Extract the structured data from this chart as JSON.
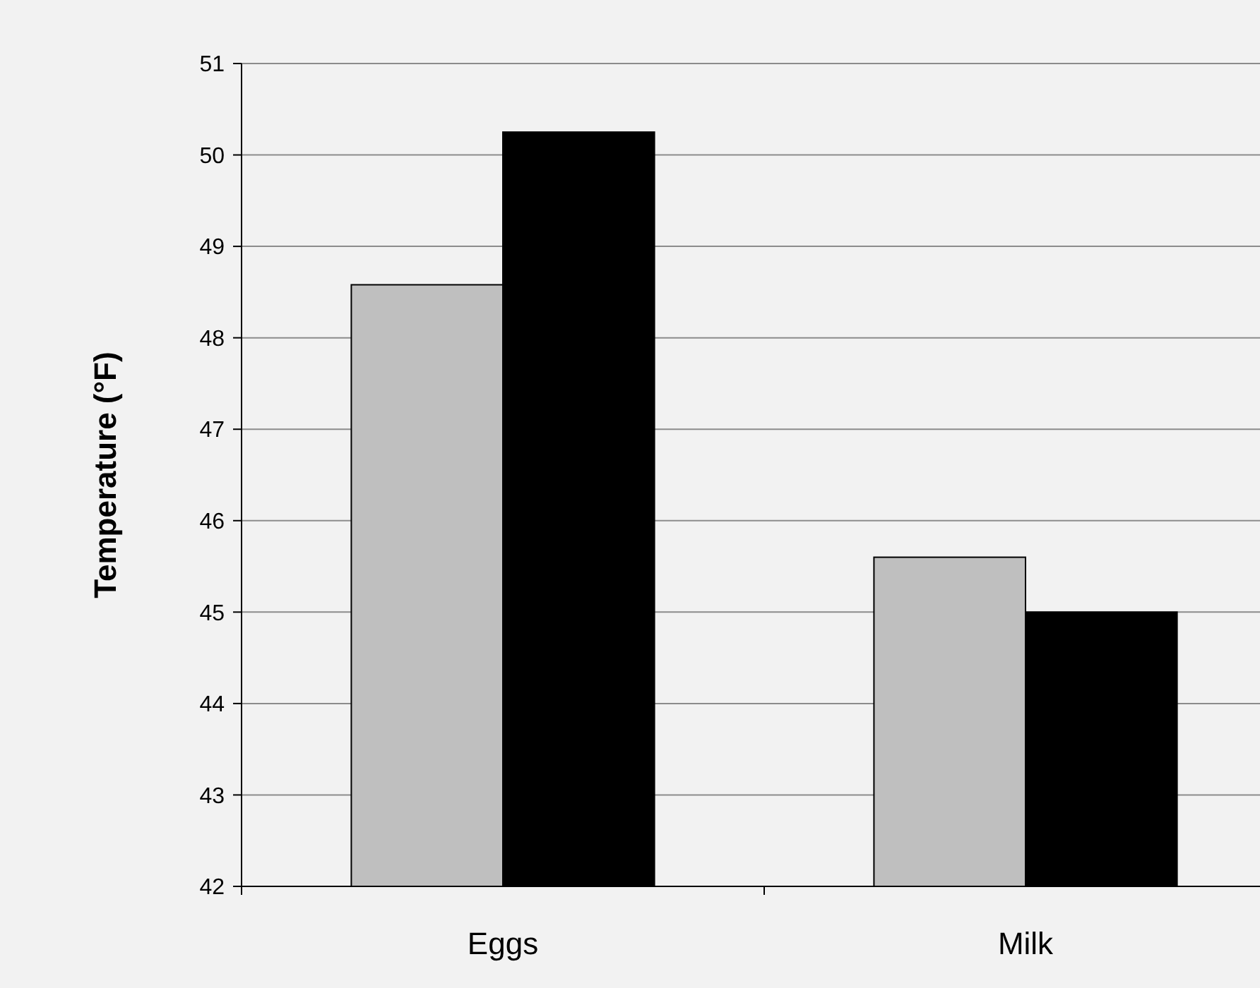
{
  "chart_data": {
    "type": "bar",
    "ylabel": "Temperature (°F)",
    "categories": [
      "Eggs",
      "Milk"
    ],
    "series": [
      {
        "color": "#bfbfbf",
        "values": [
          48.58,
          45.6
        ]
      },
      {
        "color": "#000000",
        "values": [
          50.25,
          45.0
        ]
      }
    ],
    "ylim": [
      42,
      51
    ],
    "yticks": [
      42,
      43,
      44,
      45,
      46,
      47,
      48,
      49,
      50,
      51
    ],
    "grid": "y"
  }
}
